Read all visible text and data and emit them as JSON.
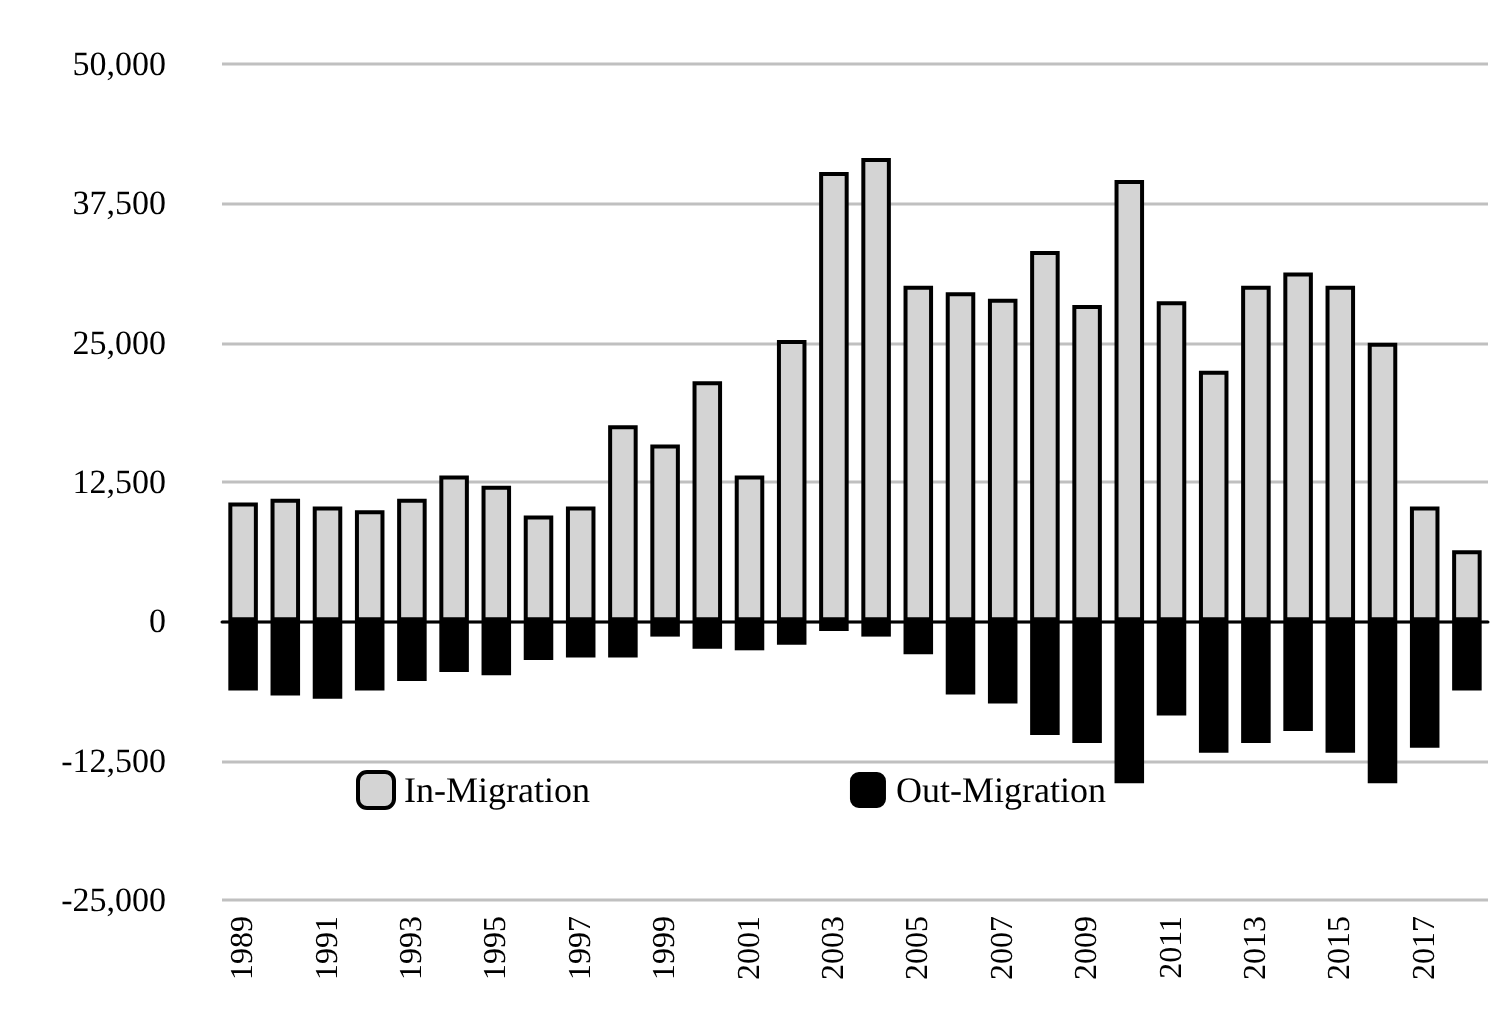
{
  "chart_data": {
    "type": "bar",
    "stacked": true,
    "categories": [
      "1989",
      null,
      "1991",
      null,
      "1993",
      null,
      "1995",
      null,
      "1997",
      null,
      "1999",
      null,
      "2001",
      null,
      "2003",
      null,
      "2005",
      null,
      "2007",
      null,
      "2009",
      null,
      "2011",
      null,
      "2013",
      null,
      "2015",
      null,
      "2017",
      null
    ],
    "series": [
      {
        "name": "In-Migration",
        "color": "#d4d4d4",
        "values": [
          10650,
          11000,
          10300,
          9960,
          11000,
          13080,
          12160,
          9500,
          10300,
          17600,
          15860,
          21540,
          13080,
          25240,
          40300,
          41570,
          30100,
          29530,
          28950,
          33230,
          28370,
          39600,
          28720,
          22470,
          30100,
          31300,
          30100,
          25000,
          10300,
          6370
        ]
      },
      {
        "name": "Out-Migration",
        "color": "#000000",
        "values": [
          -6210,
          -6650,
          -6940,
          -6210,
          -5350,
          -4550,
          -4840,
          -3470,
          -3250,
          -3250,
          -1370,
          -2460,
          -2600,
          -2100,
          -870,
          -1370,
          -2960,
          -6570,
          -7370,
          -10190,
          -10910,
          -14520,
          -8450,
          -11780,
          -10910,
          -9830,
          -11780,
          -14520,
          -11340,
          -6210
        ]
      }
    ],
    "ylim": [
      -25000,
      50000
    ],
    "yticks": [
      {
        "value": -25000,
        "label": "-25,000"
      },
      {
        "value": -12500,
        "label": "-12,500"
      },
      0,
      {
        "value": 12500,
        "label": "12,500"
      },
      {
        "value": 25000,
        "label": "25,000"
      },
      {
        "value": 37500,
        "label": "37,500"
      },
      {
        "value": 50000,
        "label": "50,000"
      }
    ],
    "grid": "y",
    "legend": "bottom left"
  }
}
